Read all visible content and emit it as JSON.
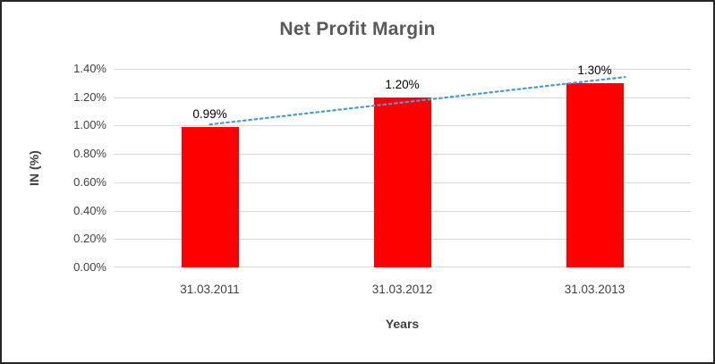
{
  "chart_data": {
    "type": "bar",
    "title": "Net Profit Margin",
    "xlabel": "Years",
    "ylabel": "IN (%)",
    "categories": [
      "31.03.2011",
      "31.03.2012",
      "31.03.2013"
    ],
    "values": [
      0.99,
      1.2,
      1.3
    ],
    "data_labels": [
      "0.99%",
      "1.20%",
      "1.30%"
    ],
    "ylim": [
      0,
      1.4
    ],
    "ytick_step": 0.2,
    "ytick_labels": [
      "0.00%",
      "0.20%",
      "0.40%",
      "0.60%",
      "0.80%",
      "1.00%",
      "1.20%",
      "1.40%"
    ],
    "grid": true,
    "legend": false,
    "trendline": {
      "style": "dotted",
      "values": [
        1.008,
        1.318
      ]
    },
    "colors": {
      "bar": "#ff0000",
      "trend": "#4a9bd4",
      "grid": "#d9d9d9",
      "title": "#595959",
      "axis_text": "#3f3f3f",
      "data_label": "#000000",
      "border": "#262626"
    }
  }
}
